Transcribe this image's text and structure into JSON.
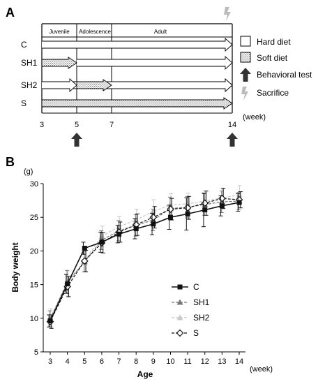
{
  "panel_a": {
    "label": "A",
    "periods": [
      "Juvenile",
      "Adolescence",
      "Adult"
    ],
    "groups": [
      {
        "name": "C",
        "soft_from": null,
        "soft_to": null
      },
      {
        "name": "SH1",
        "soft_from": 3,
        "soft_to": 5
      },
      {
        "name": "SH2",
        "soft_from": 5,
        "soft_to": 7
      },
      {
        "name": "S",
        "soft_from": 3,
        "soft_to": 14
      }
    ],
    "week_ticks": [
      "3",
      "5",
      "7",
      "14"
    ],
    "week_unit": "(week)",
    "behavioral_test_weeks": [
      5,
      14
    ],
    "sacrifice_week": 14,
    "legend": {
      "hard": "Hard diet",
      "soft": "Soft diet",
      "behavioral": "Behavioral test",
      "sacrifice": "Sacrifice"
    }
  },
  "chart_data": {
    "label": "B",
    "type": "line",
    "xlabel": "Age",
    "ylabel": "Body weight",
    "yunit": "(g)",
    "xunit": "(week)",
    "x": [
      3,
      4,
      5,
      6,
      7,
      8,
      9,
      10,
      11,
      12,
      13,
      14
    ],
    "ylim": [
      5,
      30
    ],
    "yticks": [
      5,
      10,
      15,
      20,
      25,
      30
    ],
    "legend_position": "lower-right",
    "series": [
      {
        "name": "C",
        "values": [
          9.6,
          15.1,
          20.4,
          21.3,
          22.5,
          23.3,
          24.0,
          25.0,
          25.5,
          26.1,
          26.7,
          27.2
        ],
        "err": [
          0.9,
          1.4,
          0.9,
          1.5,
          1.3,
          1.5,
          1.6,
          1.8,
          2.4,
          2.5,
          1.5,
          1.3
        ],
        "color": "#111111",
        "marker": "square",
        "dash": "solid"
      },
      {
        "name": "SH1",
        "values": [
          9.9,
          15.4,
          18.4,
          21.6,
          23.0,
          23.8,
          24.6,
          26.3,
          26.5,
          26.9,
          27.3,
          27.4
        ],
        "err": [
          1.2,
          1.7,
          1.5,
          1.4,
          1.5,
          1.6,
          1.6,
          1.7,
          1.6,
          1.6,
          1.6,
          1.3
        ],
        "color": "#777777",
        "marker": "triangle",
        "dash": "dashed"
      },
      {
        "name": "SH2",
        "values": [
          10.1,
          15.1,
          18.5,
          22.2,
          23.6,
          24.6,
          25.9,
          26.8,
          27.0,
          27.4,
          27.9,
          28.3
        ],
        "err": [
          1.3,
          1.8,
          1.5,
          1.5,
          1.5,
          1.6,
          1.7,
          1.7,
          1.6,
          1.5,
          1.4,
          1.4
        ],
        "color": "#c8c8c8",
        "marker": "triangle",
        "dash": "dashed"
      },
      {
        "name": "S",
        "values": [
          9.5,
          14.7,
          18.5,
          21.2,
          22.8,
          23.9,
          25.0,
          26.2,
          26.4,
          27.1,
          27.8,
          27.6
        ],
        "err": [
          1.0,
          1.5,
          1.6,
          1.5,
          1.5,
          1.6,
          1.6,
          1.6,
          1.7,
          1.8,
          1.5,
          1.2
        ],
        "color": "#111111",
        "marker": "diamond-open",
        "dash": "dashed"
      }
    ]
  }
}
